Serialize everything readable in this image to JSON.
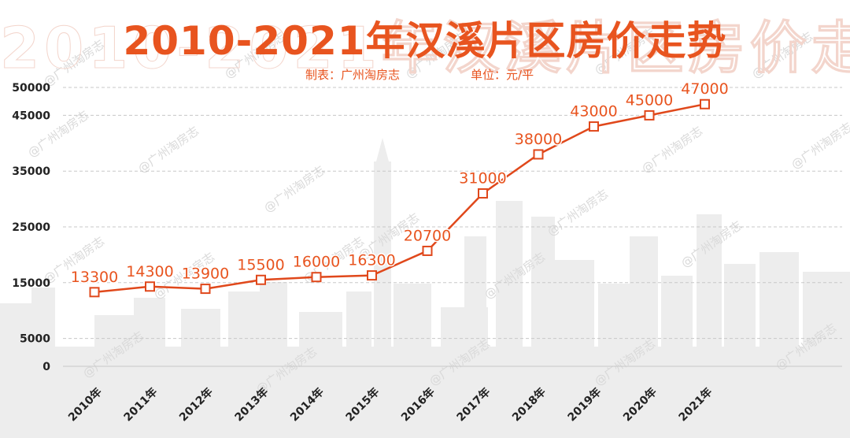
{
  "header": {
    "title": "2010-2021年汉溪片区房价走势",
    "source_label": "制表：",
    "source": "广州淘房志",
    "unit_label": "单位：",
    "unit": "元/平"
  },
  "watermark": "@广州淘房志",
  "colors": {
    "accent": "#e8541f",
    "line": "#e0481b",
    "grid": "#c8c8c8",
    "skyline": "#ededed",
    "watermark": "#d9d9d9"
  },
  "chart_data": {
    "type": "line",
    "categories": [
      "2010年",
      "2011年",
      "2012年",
      "2013年",
      "2014年",
      "2015年",
      "2016年",
      "2017年",
      "2018年",
      "2019年",
      "2020年",
      "2021年"
    ],
    "series": [
      {
        "values": [
          13300,
          14300,
          13900,
          15500,
          16000,
          16300,
          20700,
          31000,
          38000,
          43000,
          45000,
          47000
        ]
      }
    ],
    "y_ticks": [
      0,
      5000,
      15000,
      25000,
      35000,
      45000,
      50000
    ],
    "ylim": [
      0,
      50000
    ],
    "xlabel": "",
    "ylabel": "",
    "grid": true,
    "data_labels": true,
    "marker": "square"
  }
}
